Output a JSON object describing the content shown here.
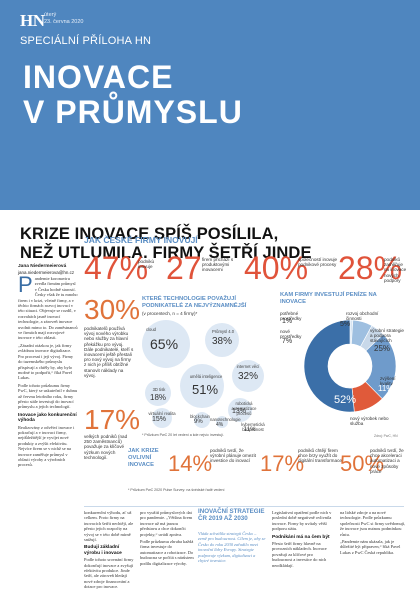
{
  "masthead": {
    "logo": "HN",
    "day": "úterý",
    "date": "23. června 2020",
    "supplement": "SPECIÁLNÍ PŘÍLOHA HN",
    "title_line1": "INOVACE",
    "title_line2": "V PRŮMYSLU"
  },
  "article": {
    "headline_line1": "KRIZE INOVACE SPÍŠ POSÍLILA,",
    "headline_line2": "NEŽ UTLUMILA. FIRMY ŠETŘÍ JINDE",
    "author_name": "Jana Niedermeierová",
    "author_email": "jana.niedermeierova@hn.cz",
    "dropcap": "P",
    "col1_p1": "andemie koronaviru zvedla firmám průmysl v Česku hodně starostí. Česky však že tu mnoho firem i v krizi, včetně firmy, a v těchto firmách rozvoj inovací v této situaci. Objevuje se rozdíl, v rozvahách jasně inovací technologie, a zároveň inovace uvolnit mimo to. Do zaměstnanců ve firmách mají rozvojové inovace v této oblasti.",
    "col1_p2": "„Zásadní otázkou je, jak firmy zvládnou inovace digitalizace. Pro procesní i její vývoj. Firmy do tuzemského průmyslu přispívají a chtěly by, aby bylo možné to podpořit,“ říká Pavel Lukas.",
    "col1_p3": "Podle tohoto průzkumu firmy PwC, který se uskutečnil v dubnu až červnu letošního roku, firmy přesto stále investují do inovací průmyslu a jejich technologií.",
    "col1_head": "Inovace jako konkurenční výhoda",
    "col1_p4": "Realizovány z odvětví inovace i pokračují a v inovaci firmy, nejdůležitější je vyvíjet nové produkty a zvýšit efektivitu. Nejvíce firem se v nichž se na inovace zaměřuje průmysl v oblasti výroby a výrobních procesů.",
    "col2_p1": "konkurenční výhodu, ať už celkem. Proto firmy na inovacích šetřit nechtějí, ale přesto jejich rozpočty na vývoj se v této době mírně snižují.",
    "col2_head": "Budují základní výrobu i inovace",
    "col2_p2": "Podle tohoto srovnání firmy dokončují inovace a zvyšují efektivitu produkce. Jinde šetří, ale zároveň hledají nové zdroje financování a dotace pro inovace.",
    "col3_p1": "pro využití průmyslových dat pro pandemie. „Většina firem inovace už má jasnou představu a chce dokončit projekty,“ uvádí zpráva.",
    "col3_p2": "Podle průzkumu zhruba každá firma investuje do automatizace a robotizace. Do budoucna se počítá s nárůstem podílu digitalizace výroby.",
    "col4_p1": "Legislativní opatření podle nich v poslední době negativně ovlivnila inovace. Firmy by uvítaly větší podporu státu.",
    "col4_head": "Podnikání má na čem být",
    "col4_p2": "Přesto šetří firmy hlavně na provozních nákladech. Inovace považují za klíčové pro budoucnost a investice do nich neodkládají.",
    "col5_p1": "na lidské zdroje a na nové technologie. Podle průzkumu společnosti PwC si firmy uvědomují, že inovace jsou nutnou podmínkou růstu.",
    "col5_p2": "„Pandemie nám ukázala, jak je důležité být připraven,“ říká Pavel Lukas z PwC Česká republika.",
    "innov_title": "INOVAČNÍ STRATEGIE ČR 2019 AŽ 2030",
    "innov_text": "Vláda schválila strategii Česko – země pro budoucnost. Cílem je, aby se Česko do roku 2030 zařadilo mezi inovační lídry Evropy. Strategie podporuje výzkum, digitalizaci a chytré investice."
  },
  "infographic": {
    "title": "JAK ČESKÉ FIRMY INOVUJÍ",
    "stats": [
      {
        "value": "47%",
        "label": "podnikù inovuje"
      },
      {
        "value": "27",
        "label": "firem přichází s produktovými inovacemi"
      },
      {
        "value": "40%",
        "label": "společností inovuje podnikové procesy"
      },
      {
        "value": "28%",
        "label": "podniků zaměřuje na inovace nových podpory"
      }
    ],
    "stat30": {
      "value": "30%",
      "label": "podnikatelů používá vývoj nového výrobku nebo služby za hlavní překážku pro vývoj. Dále podnikatelé, kteří s inovacemi ještě přestali pro nový vývoj na firmy z nich je příliš obtížné stanovit náklady na vývoj."
    },
    "stat17": {
      "value": "17%",
      "label": "velkých podniků (nad 250 zaměstnanců) považuje za klíčové výzkum nových technologií."
    },
    "tech": {
      "title": "KTERÉ TECHNOLOGIE POVAŽUJÍ PODNIKATELÉ ZA NEJVÝZNAMNĚJŠÍ",
      "subtitle": "(v procentech, n = 4 firmy)*",
      "bubbles": [
        {
          "label": "cloud",
          "value": "65%"
        },
        {
          "label": "Průmysl 4.0",
          "value": "38%"
        },
        {
          "label": "internet věcí",
          "value": "32%"
        },
        {
          "label": "umělá inteligence",
          "value": "51%"
        },
        {
          "label": "3D tisk",
          "value": "18%"
        },
        {
          "label": "virtuální realita",
          "value": "15%"
        },
        {
          "label": "robotická automatizace procesů",
          "value": "13%"
        },
        {
          "label": "blockchain",
          "value": "9%"
        },
        {
          "label": "nanotechnologie",
          "value": "4%"
        },
        {
          "label": "kybernetická bezpečnost",
          "value": "11%"
        }
      ],
      "note": "* Průzkum PwC 20 let vedení a kde nejvíc investují."
    },
    "invest": {
      "title": "KAM FIRMY INVESTUJÍ PENÍZE NA INOVACE",
      "segments": [
        {
          "label": "potřebné prostředky",
          "value": "1%"
        },
        {
          "label": "nové prostředky",
          "value": "7%"
        },
        {
          "label": "rozvoj obchodní činnosti",
          "value": "5%"
        },
        {
          "label": "výrobní strategie a podpora stávajících",
          "value": "25%"
        },
        {
          "label": "zvýšení kvality",
          "value": "11%"
        },
        {
          "label": "nový výrobek nebo služba",
          "value": "52%"
        }
      ],
      "segment_colors": [
        "#d6e4f2",
        "#9ebfe0",
        "#c8d8e9",
        "#6f9bcb",
        "#e05a3a",
        "#3b6fa8"
      ],
      "source": "Zdroj: PwC, HN"
    },
    "blockers": {
      "title": "JAK KRIZE OVLIVNÍ INOVACE",
      "items": [
        {
          "value": "14%",
          "label": "podniků tvrdí, že výrobní plánuje omezit investice do inovací"
        },
        {
          "value": "17%",
          "label": "podniků chtějí firem chce brzy využít do digitální transformace"
        },
        {
          "value": "50%",
          "label": "podniků tvrdí, že chce akceleraci automatizaci a nové způsoby práce"
        }
      ],
      "note": "* Průzkum PwC 2020 Pulse Survey: na švédské řadě vedení"
    }
  }
}
